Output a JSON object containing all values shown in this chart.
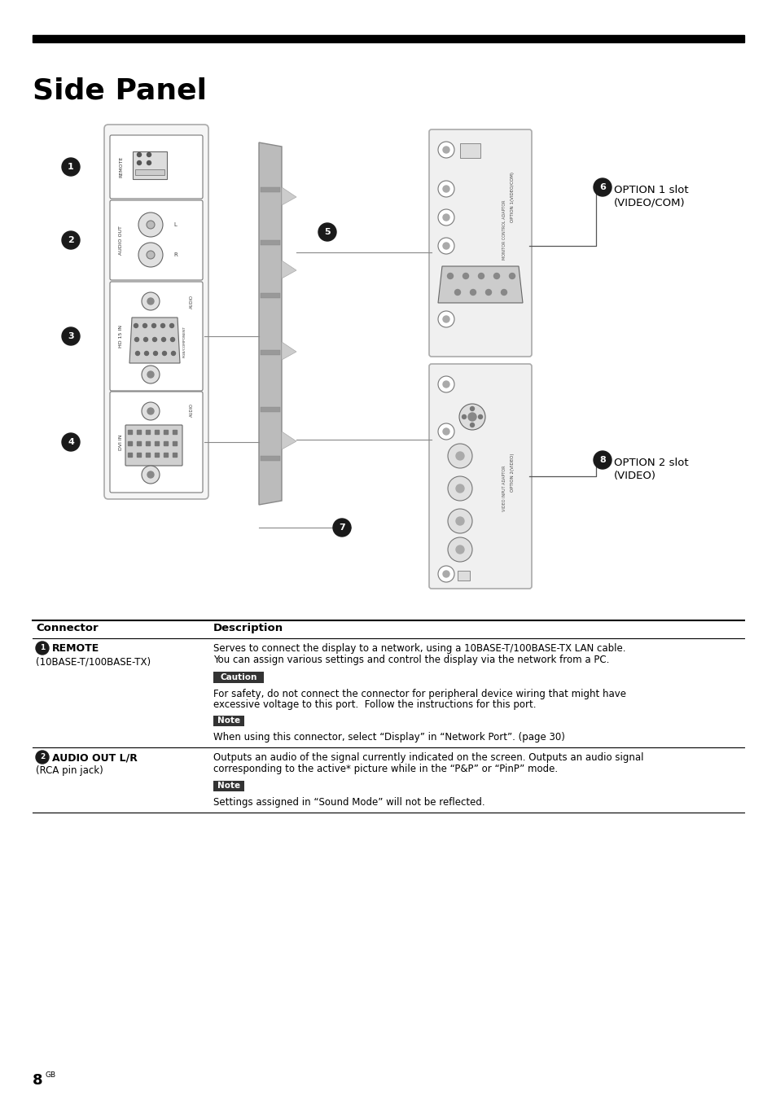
{
  "title": "Side Panel",
  "background_color": "#ffffff",
  "page_number": "8",
  "page_suffix": "GB",
  "table_header_connector": "Connector",
  "table_header_description": "Description",
  "rows": [
    {
      "connector_num": "1",
      "connector_name": "REMOTE",
      "connector_sub": "(10BASE-T/100BASE-TX)",
      "description_lines": [
        "Serves to connect the display to a network, using a 10BASE-T/100BASE-TX LAN cable.",
        "You can assign various settings and control the display via the network from a PC."
      ],
      "caution_label": "Caution",
      "caution_lines": [
        "For safety, do not connect the connector for peripheral device wiring that might have",
        "excessive voltage to this port.  Follow the instructions for this port."
      ],
      "note_label": "Note",
      "note_lines": [
        "When using this connector, select “Display” in “Network Port”. (page 30)"
      ]
    },
    {
      "connector_num": "2",
      "connector_name": "AUDIO OUT L/R",
      "connector_sub": "(RCA pin jack)",
      "description_lines": [
        "Outputs an audio of the signal currently indicated on the screen. Outputs an audio signal",
        "corresponding to the active* picture while in the “P&P” or “PinP” mode."
      ],
      "caution_label": null,
      "caution_lines": [],
      "note_label": "Note",
      "note_lines": [
        "Settings assigned in “Sound Mode” will not be reflected."
      ]
    }
  ],
  "option1_label_line1": "OPTION 1 slot",
  "option1_label_line2": "(VIDEO/COM)",
  "option2_label_line1": "OPTION 2 slot",
  "option2_label_line2": "(VIDEO)"
}
